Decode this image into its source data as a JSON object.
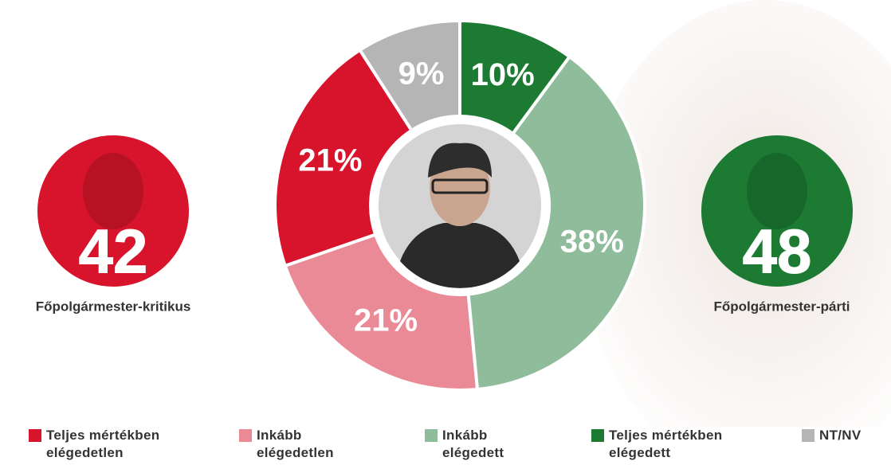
{
  "chart_data": {
    "type": "pie",
    "donut": true,
    "categories": [
      "Teljes mértékben elégedetlen",
      "Inkább elégedetlen",
      "Inkább elégedett",
      "Teljes mértékben elégedett",
      "NT/NV"
    ],
    "values": [
      21,
      21,
      38,
      10,
      9
    ],
    "value_labels": [
      "21%",
      "21%",
      "38%",
      "10%",
      "9%"
    ],
    "colors": [
      "#d7142b",
      "#ea8a96",
      "#8fbc9a",
      "#1d7a32",
      "#b5b5b5"
    ],
    "legend": "bottom",
    "summaries": [
      {
        "label": "Főpolgármester-kritikus",
        "value": 42,
        "color": "#d7142b"
      },
      {
        "label": "Főpolgármester-párti",
        "value": 48,
        "color": "#1d7a32"
      }
    ]
  }
}
